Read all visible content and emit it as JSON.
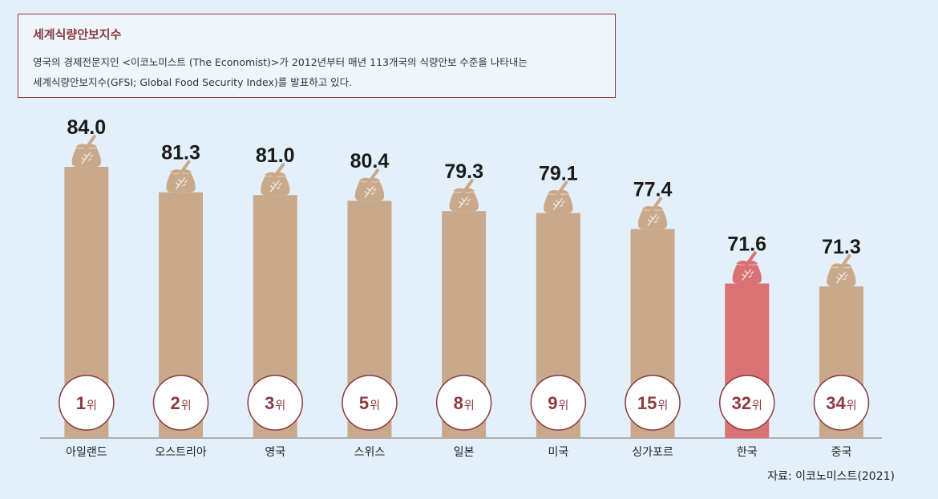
{
  "header": {
    "title": "세계식량안보지수",
    "description_line1": "영국의 경제전문지인 <이코노미스트 (The Economist)>가 2012년부터 매년 113개국의 식량안보 수준을 나타내는",
    "description_line2": "세계식량안보지수(GFSI; Global Food Security Index)를 발표하고 있다."
  },
  "source": "자료: 이코노미스트(2021)",
  "colors": {
    "bar": "#c9a98b",
    "highlight_bar": "#d97274",
    "sack": "#c9a98b",
    "highlight_sack": "#d97274",
    "circle_border": "#8c3a3e",
    "axis": "#999999"
  },
  "chart_data": {
    "type": "bar",
    "title": "세계식량안보지수",
    "categories": [
      "아일랜드",
      "오스트리아",
      "영국",
      "스위스",
      "일본",
      "미국",
      "싱가포르",
      "한국",
      "중국"
    ],
    "values": [
      84.0,
      81.3,
      81.0,
      80.4,
      79.3,
      79.1,
      77.4,
      71.6,
      71.3
    ],
    "value_labels": [
      "84.0",
      "81.3",
      "81.0",
      "80.4",
      "79.3",
      "79.1",
      "77.4",
      "71.6",
      "71.3"
    ],
    "ranks": [
      "1",
      "2",
      "3",
      "5",
      "8",
      "9",
      "15",
      "32",
      "34"
    ],
    "rank_unit": "위",
    "highlight": "한국",
    "xlabel": "",
    "ylabel": "",
    "ylim": [
      50,
      85
    ]
  }
}
